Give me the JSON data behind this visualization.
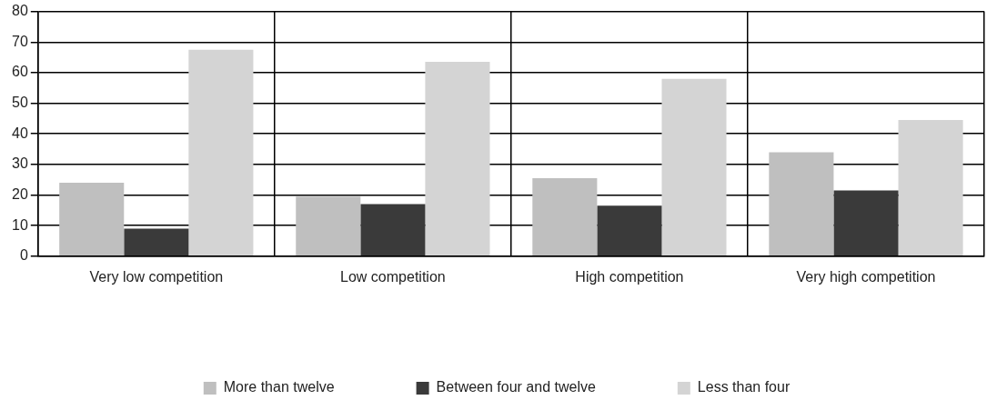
{
  "chart_data": {
    "type": "bar",
    "categories": [
      "Very low competition",
      "Low competition",
      "High competition",
      "Very high competition"
    ],
    "series": [
      {
        "name": "More than twelve",
        "color": "#bfbfbf",
        "values": [
          24,
          19.5,
          25.5,
          34
        ]
      },
      {
        "name": "Between four and twelve",
        "color": "#3a3a3a",
        "values": [
          9,
          17,
          16.5,
          21.5
        ]
      },
      {
        "name": "Less than four",
        "color": "#d4d4d4",
        "values": [
          67.5,
          63.5,
          58,
          44.5
        ]
      }
    ],
    "ylim": [
      0,
      80
    ],
    "yticks": [
      0,
      10,
      20,
      30,
      40,
      50,
      60,
      70,
      80
    ],
    "grid": true,
    "legend": "bottom"
  }
}
